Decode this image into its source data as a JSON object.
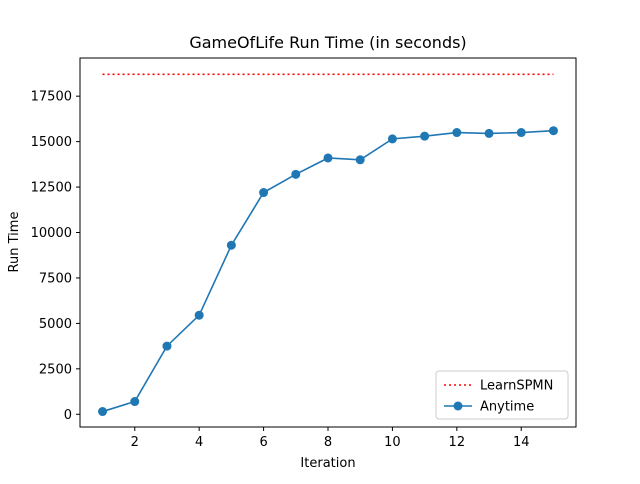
{
  "chart_data": {
    "type": "line",
    "title": "GameOfLife Run Time (in seconds)",
    "xlabel": "Iteration",
    "ylabel": "Run Time",
    "xlim": [
      0.3,
      15.7
    ],
    "ylim": [
      -700,
      19600
    ],
    "xticks": [
      2,
      4,
      6,
      8,
      10,
      12,
      14
    ],
    "yticks": [
      0,
      2500,
      5000,
      7500,
      10000,
      12500,
      15000,
      17500
    ],
    "grid": false,
    "legend_position": "lower right",
    "series": [
      {
        "name": "LearnSPMN",
        "style": "dotted",
        "color": "#ff0000",
        "marker": "none",
        "x": [
          1,
          15
        ],
        "y": [
          18700,
          18700
        ]
      },
      {
        "name": "Anytime",
        "style": "solid",
        "color": "#1f77b4",
        "marker": "circle",
        "x": [
          1,
          2,
          3,
          4,
          5,
          6,
          7,
          8,
          9,
          10,
          11,
          12,
          13,
          14,
          15
        ],
        "y": [
          150,
          700,
          3750,
          5450,
          9300,
          12200,
          13200,
          14100,
          14000,
          15150,
          15300,
          15500,
          15450,
          15500,
          15600
        ]
      }
    ]
  }
}
